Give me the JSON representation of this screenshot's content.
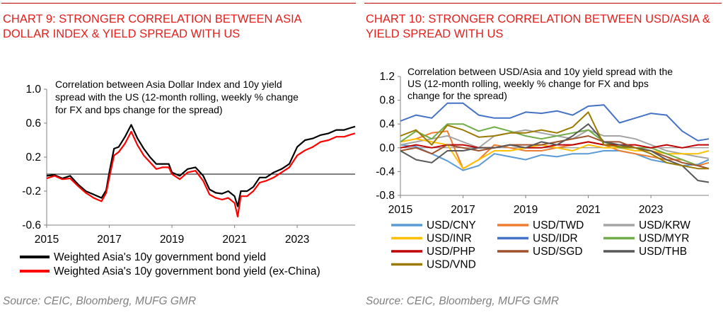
{
  "chart_data": [
    {
      "type": "line",
      "title": "CHART 9: STRONGER CORRELATION BETWEEN ASIA DOLLAR INDEX & YIELD SPREAD WITH US",
      "annotation": "Correlation between Asia Dollar Index and 10y yield spread with the US (12-month rolling, weekly % change for FX and bps change for the spread)",
      "source": "Source: CEIC, Bloomberg, MUFG GMR",
      "ylim": [
        -0.6,
        1.0
      ],
      "yticks": [
        "1.0",
        "0.6",
        "0.2",
        "-0.2",
        "-0.6"
      ],
      "xlim": [
        2015,
        2024.85
      ],
      "xticks": [
        "2015",
        "2017",
        "2019",
        "2021",
        "2023"
      ],
      "zero_line": true,
      "grid": false,
      "legend_position": "bottom",
      "x": [
        2015.0,
        2015.25,
        2015.5,
        2015.75,
        2016.0,
        2016.25,
        2016.5,
        2016.75,
        2016.9,
        2017.0,
        2017.15,
        2017.3,
        2017.5,
        2017.7,
        2017.9,
        2018.1,
        2018.3,
        2018.5,
        2018.7,
        2018.9,
        2019.0,
        2019.25,
        2019.5,
        2019.75,
        2020.0,
        2020.2,
        2020.4,
        2020.6,
        2020.8,
        2021.0,
        2021.1,
        2021.2,
        2021.4,
        2021.6,
        2021.8,
        2022.0,
        2022.25,
        2022.5,
        2022.75,
        2023.0,
        2023.25,
        2023.5,
        2023.75,
        2024.0,
        2024.25,
        2024.5,
        2024.75,
        2024.85
      ],
      "series": [
        {
          "name": "Weighted Asia's 10y government bond yield",
          "color": "#000000",
          "values": [
            -0.02,
            -0.01,
            -0.05,
            -0.02,
            -0.12,
            -0.2,
            -0.24,
            -0.28,
            -0.19,
            0.02,
            0.3,
            0.32,
            0.44,
            0.58,
            0.42,
            0.3,
            0.2,
            0.12,
            0.12,
            0.12,
            0.02,
            -0.02,
            0.06,
            0.08,
            -0.02,
            -0.18,
            -0.22,
            -0.23,
            -0.2,
            -0.26,
            -0.38,
            -0.2,
            -0.2,
            -0.15,
            -0.04,
            -0.04,
            0.02,
            0.06,
            0.12,
            0.32,
            0.4,
            0.42,
            0.46,
            0.48,
            0.52,
            0.52,
            0.55,
            0.56
          ]
        },
        {
          "name": "Weighted Asia's 10y government bond yield (ex-China)",
          "color": "#ff0000",
          "values": [
            -0.05,
            -0.02,
            -0.06,
            -0.05,
            -0.14,
            -0.22,
            -0.28,
            -0.32,
            -0.22,
            -0.04,
            0.22,
            0.26,
            0.36,
            0.5,
            0.34,
            0.22,
            0.14,
            0.06,
            0.08,
            0.08,
            0.0,
            -0.06,
            0.02,
            0.04,
            -0.08,
            -0.24,
            -0.28,
            -0.3,
            -0.28,
            -0.34,
            -0.5,
            -0.26,
            -0.26,
            -0.2,
            -0.1,
            -0.08,
            -0.04,
            0.02,
            0.08,
            0.22,
            0.28,
            0.32,
            0.38,
            0.4,
            0.44,
            0.44,
            0.47,
            0.48
          ]
        }
      ]
    },
    {
      "type": "line",
      "title": "CHART 10: STRONGER CORRELATION BETWEEN USD/ASIA & YIELD SPREAD WITH US",
      "annotation": "Correlation between USD/Asia and 10y yield spread with the US (12-month rolling, weekly % change for FX and bps change for the spread)",
      "source": "Source: CEIC, Bloomberg, MUFG GMR",
      "ylim": [
        -0.8,
        1.2
      ],
      "yticks": [
        "1.2",
        "0.8",
        "0.4",
        "0.0",
        "-0.4",
        "-0.8"
      ],
      "xlim": [
        2015,
        2024.85
      ],
      "xticks": [
        "2015",
        "2017",
        "2019",
        "2021",
        "2023"
      ],
      "grid": false,
      "legend_position": "bottom",
      "x": [
        2015.0,
        2015.5,
        2016.0,
        2016.5,
        2017.0,
        2017.5,
        2018.0,
        2018.5,
        2019.0,
        2019.5,
        2020.0,
        2020.5,
        2021.0,
        2021.5,
        2022.0,
        2022.5,
        2023.0,
        2023.5,
        2024.0,
        2024.5,
        2024.85
      ],
      "series": [
        {
          "name": "USD/CNY",
          "color": "#5b9bd5",
          "values": [
            0.05,
            0.02,
            -0.1,
            -0.22,
            -0.38,
            -0.3,
            -0.1,
            -0.15,
            -0.2,
            -0.12,
            -0.15,
            -0.1,
            -0.1,
            -0.05,
            -0.05,
            -0.1,
            -0.2,
            -0.25,
            -0.3,
            -0.28,
            -0.2
          ]
        },
        {
          "name": "USD/TWD",
          "color": "#ed7d31",
          "values": [
            0.1,
            0.15,
            0.25,
            0.28,
            -0.35,
            -0.2,
            0.05,
            0.0,
            -0.05,
            -0.05,
            0.0,
            0.05,
            0.1,
            0.05,
            -0.05,
            -0.1,
            -0.15,
            -0.2,
            -0.2,
            -0.3,
            -0.25
          ]
        },
        {
          "name": "USD/KRW",
          "color": "#a5a5a5",
          "values": [
            0.05,
            0.1,
            0.15,
            0.2,
            0.1,
            0.0,
            0.2,
            0.25,
            0.3,
            0.25,
            0.2,
            0.15,
            0.3,
            0.2,
            0.2,
            0.15,
            0.05,
            -0.05,
            -0.1,
            -0.15,
            -0.18
          ]
        },
        {
          "name": "USD/INR",
          "color": "#ffc000",
          "values": [
            0.1,
            0.15,
            0.1,
            0.05,
            -0.35,
            -0.2,
            -0.05,
            -0.05,
            0.0,
            0.05,
            0.0,
            -0.05,
            0.05,
            0.0,
            0.0,
            -0.05,
            -0.05,
            -0.1,
            -0.1,
            -0.1,
            -0.05
          ]
        },
        {
          "name": "USD/IDR",
          "color": "#4472c4",
          "values": [
            0.45,
            0.55,
            0.5,
            0.75,
            0.75,
            0.55,
            0.5,
            0.5,
            0.6,
            0.58,
            0.62,
            0.55,
            0.7,
            0.72,
            0.42,
            0.5,
            0.58,
            0.55,
            0.28,
            0.12,
            0.15
          ]
        },
        {
          "name": "USD/MYR",
          "color": "#70ad47",
          "values": [
            0.1,
            0.28,
            0.15,
            0.4,
            0.4,
            0.28,
            0.35,
            0.28,
            0.2,
            0.15,
            0.2,
            0.25,
            0.3,
            0.1,
            0.0,
            0.0,
            0.0,
            -0.1,
            -0.2,
            -0.3,
            -0.35
          ]
        },
        {
          "name": "USD/PHP",
          "color": "#c00000",
          "values": [
            0.0,
            0.05,
            0.0,
            0.05,
            0.05,
            0.0,
            0.0,
            0.05,
            0.0,
            0.0,
            0.05,
            0.05,
            0.1,
            0.05,
            0.05,
            0.05,
            0.0,
            0.05,
            0.0,
            0.05,
            0.05
          ]
        },
        {
          "name": "USD/SGD",
          "color": "#a0522d",
          "values": [
            -0.05,
            0.0,
            -0.1,
            0.05,
            0.0,
            -0.05,
            0.0,
            0.05,
            0.05,
            0.05,
            0.1,
            0.15,
            0.2,
            0.1,
            0.1,
            0.0,
            -0.05,
            -0.15,
            -0.25,
            -0.3,
            -0.35
          ]
        },
        {
          "name": "USD/THB",
          "color": "#595959",
          "values": [
            -0.05,
            -0.2,
            -0.25,
            -0.05,
            -0.05,
            0.0,
            0.0,
            0.05,
            0.0,
            0.1,
            0.05,
            0.2,
            0.4,
            0.1,
            0.05,
            0.0,
            -0.05,
            -0.2,
            -0.3,
            -0.55,
            -0.58
          ]
        },
        {
          "name": "USD/VND",
          "color": "#9c7a00",
          "values": [
            0.2,
            0.3,
            0.05,
            0.38,
            0.3,
            0.18,
            0.2,
            0.25,
            0.25,
            0.3,
            0.25,
            0.35,
            0.6,
            0.05,
            0.02,
            0.0,
            -0.1,
            -0.25,
            -0.3,
            -0.35,
            -0.35
          ]
        }
      ]
    }
  ]
}
